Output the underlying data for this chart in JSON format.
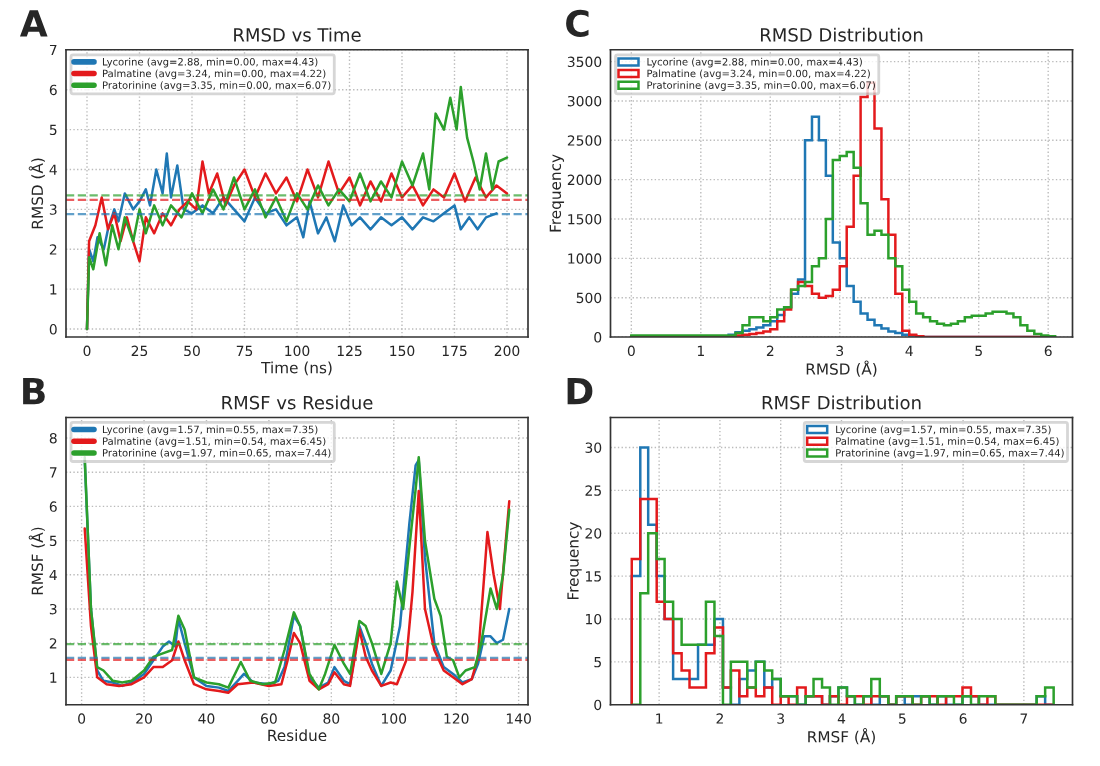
{
  "chart_data": [
    {
      "type": "line",
      "title": "RMSD vs Time",
      "xlabel": "Time (ns)",
      "ylabel": "RMSD (Å)",
      "annotations": [
        "A"
      ],
      "xlim": [
        -10,
        210
      ],
      "xticks": [
        0,
        25,
        50,
        75,
        100,
        125,
        150,
        175,
        200
      ],
      "ylim": [
        -0.2,
        7
      ],
      "yticks": [
        0,
        1,
        2,
        3,
        4,
        5,
        6,
        7
      ],
      "grid": true,
      "legend": "top left",
      "ref_lines": [
        {
          "axis": "y",
          "value": 2.88,
          "color": "#1f77b4",
          "line_style": "dashed"
        },
        {
          "axis": "y",
          "value": 3.24,
          "color": "#e31a1c",
          "line_style": "dashed"
        },
        {
          "axis": "y",
          "value": 3.35,
          "color": "#2ca02c",
          "line_style": "dashed"
        }
      ],
      "series": [
        {
          "name": "Lycorine (avg=2.88, min=0.00, max=4.43)",
          "color": "#1f77b4",
          "x": [
            0,
            1,
            3,
            5,
            8,
            10,
            13,
            15,
            18,
            22,
            25,
            28,
            30,
            33,
            36,
            38,
            40,
            43,
            46,
            50,
            55,
            60,
            65,
            70,
            75,
            80,
            85,
            90,
            95,
            100,
            103,
            106,
            110,
            114,
            118,
            122,
            126,
            130,
            135,
            140,
            145,
            150,
            155,
            160,
            165,
            170,
            175,
            178,
            182,
            186,
            190,
            195
          ],
          "values": [
            0,
            2.0,
            1.7,
            2.3,
            2.0,
            2.5,
            3.0,
            2.7,
            3.4,
            3.0,
            3.2,
            3.5,
            3.1,
            4.0,
            3.4,
            4.4,
            3.3,
            4.1,
            3.0,
            2.9,
            3.1,
            2.9,
            3.3,
            3.0,
            2.7,
            3.3,
            2.9,
            3.0,
            2.6,
            2.8,
            2.3,
            3.2,
            2.4,
            2.8,
            2.2,
            3.1,
            2.6,
            2.8,
            2.5,
            2.8,
            2.6,
            2.8,
            2.5,
            2.8,
            2.7,
            2.9,
            3.1,
            2.5,
            2.8,
            2.5,
            2.8,
            2.9
          ]
        },
        {
          "name": "Palmatine (avg=3.24, min=0.00, max=4.22)",
          "color": "#e31a1c",
          "x": [
            0,
            1,
            4,
            7,
            10,
            13,
            16,
            19,
            22,
            25,
            28,
            32,
            36,
            40,
            44,
            48,
            52,
            55,
            58,
            62,
            66,
            70,
            75,
            80,
            85,
            90,
            95,
            100,
            105,
            110,
            115,
            120,
            125,
            130,
            135,
            140,
            145,
            150,
            155,
            160,
            165,
            170,
            175,
            180,
            185,
            190,
            195,
            200
          ],
          "values": [
            0,
            2.2,
            2.6,
            3.3,
            2.5,
            2.9,
            2.2,
            2.8,
            2.2,
            1.7,
            2.8,
            2.4,
            2.9,
            2.6,
            3.0,
            3.2,
            3.0,
            4.2,
            3.4,
            3.9,
            3.1,
            3.6,
            4.0,
            3.3,
            3.9,
            3.4,
            3.8,
            3.2,
            4.0,
            3.3,
            4.2,
            3.4,
            3.8,
            3.1,
            3.7,
            3.2,
            3.9,
            3.3,
            3.6,
            3.1,
            3.5,
            3.3,
            3.9,
            3.2,
            3.8,
            3.3,
            3.6,
            3.4
          ]
        },
        {
          "name": "Pratorinine (avg=3.35, min=0.00, max=6.07)",
          "color": "#2ca02c",
          "x": [
            0,
            1,
            3,
            6,
            9,
            12,
            15,
            18,
            22,
            25,
            28,
            32,
            36,
            40,
            45,
            50,
            55,
            60,
            65,
            70,
            75,
            80,
            85,
            90,
            95,
            100,
            105,
            110,
            115,
            120,
            125,
            130,
            135,
            140,
            145,
            150,
            155,
            160,
            163,
            166,
            170,
            173,
            176,
            178,
            181,
            184,
            187,
            190,
            193,
            196,
            200
          ],
          "values": [
            0,
            1.8,
            1.5,
            2.4,
            1.6,
            2.6,
            2.0,
            2.8,
            2.2,
            3.0,
            2.4,
            3.1,
            2.6,
            3.1,
            2.8,
            3.4,
            2.9,
            3.5,
            3.0,
            3.8,
            3.0,
            3.5,
            2.8,
            3.3,
            2.7,
            3.4,
            3.0,
            3.6,
            3.1,
            3.5,
            3.2,
            3.9,
            3.2,
            3.7,
            3.3,
            4.2,
            3.6,
            4.4,
            3.5,
            5.4,
            5.0,
            5.8,
            5.0,
            6.07,
            4.8,
            4.2,
            3.5,
            4.4,
            3.5,
            4.2,
            4.3
          ]
        }
      ]
    },
    {
      "type": "histogram",
      "title": "RMSD Distribution",
      "xlabel": "RMSD (Å)",
      "ylabel": "Frequency",
      "annotations": [
        "C"
      ],
      "xlim": [
        -0.3,
        6.35
      ],
      "xticks": [
        0,
        1,
        2,
        3,
        4,
        5,
        6
      ],
      "ylim": [
        0,
        3650
      ],
      "yticks": [
        0,
        500,
        1000,
        1500,
        2000,
        2500,
        3000,
        3500
      ],
      "grid": true,
      "legend": "top left",
      "bins": [
        0,
        1.4,
        1.5,
        1.6,
        1.7,
        1.8,
        1.9,
        2.0,
        2.1,
        2.2,
        2.3,
        2.4,
        2.5,
        2.6,
        2.7,
        2.8,
        2.9,
        3.0,
        3.1,
        3.2,
        3.3,
        3.4,
        3.5,
        3.6,
        3.7,
        3.8,
        3.9,
        4.0,
        4.1,
        4.2,
        4.3,
        4.4,
        4.5,
        4.6,
        4.7,
        4.8,
        4.9,
        5.0,
        5.1,
        5.2,
        5.3,
        5.4,
        5.5,
        5.6,
        5.7,
        5.8,
        5.9,
        6.0,
        6.1
      ],
      "series": [
        {
          "name": "Lycorine (avg=2.88, min=0.00, max=4.43)",
          "color": "#1f77b4",
          "values": [
            10,
            30,
            60,
            80,
            100,
            120,
            150,
            200,
            280,
            380,
            550,
            730,
            2500,
            2800,
            2500,
            2050,
            1200,
            1000,
            650,
            450,
            300,
            220,
            150,
            110,
            70,
            50,
            30,
            20,
            10,
            0,
            0,
            0,
            0,
            0,
            0,
            0,
            0,
            0,
            0,
            0,
            0,
            0,
            0,
            0,
            0,
            0,
            0,
            0
          ]
        },
        {
          "name": "Palmatine (avg=3.24, min=0.00, max=4.22)",
          "color": "#e31a1c",
          "values": [
            10,
            10,
            20,
            30,
            40,
            50,
            70,
            100,
            200,
            350,
            600,
            700,
            650,
            550,
            500,
            520,
            600,
            900,
            1400,
            2050,
            3050,
            3230,
            2650,
            1750,
            1300,
            550,
            80,
            30,
            10,
            0,
            0,
            0,
            0,
            0,
            0,
            0,
            0,
            0,
            0,
            0,
            0,
            0,
            0,
            0,
            0,
            0,
            0,
            0
          ]
        },
        {
          "name": "Pratorinine (avg=3.35, min=0.00, max=6.07)",
          "color": "#2ca02c",
          "values": [
            20,
            20,
            50,
            150,
            250,
            250,
            200,
            250,
            350,
            380,
            600,
            650,
            700,
            900,
            1000,
            1500,
            2250,
            2300,
            2350,
            2150,
            1700,
            1300,
            1350,
            1300,
            1000,
            900,
            600,
            450,
            300,
            250,
            200,
            170,
            150,
            170,
            200,
            250,
            270,
            270,
            300,
            320,
            320,
            300,
            250,
            150,
            80,
            40,
            20,
            10
          ]
        }
      ]
    },
    {
      "type": "line",
      "title": "RMSF vs Residue",
      "xlabel": "Residue",
      "ylabel": "RMSF (Å)",
      "annotations": [
        "B"
      ],
      "xlim": [
        -5,
        143
      ],
      "xticks": [
        0,
        20,
        40,
        60,
        80,
        100,
        120,
        140
      ],
      "ylim": [
        0.2,
        8.6
      ],
      "yticks": [
        1,
        2,
        3,
        4,
        5,
        6,
        7,
        8
      ],
      "grid": true,
      "legend": "top left",
      "ref_lines": [
        {
          "axis": "y",
          "value": 1.57,
          "color": "#1f77b4",
          "line_style": "dashed"
        },
        {
          "axis": "y",
          "value": 1.51,
          "color": "#e31a1c",
          "line_style": "dashed"
        },
        {
          "axis": "y",
          "value": 1.97,
          "color": "#2ca02c",
          "line_style": "dashed"
        }
      ],
      "series": [
        {
          "name": "Lycorine (avg=1.57, min=0.55, max=7.35)",
          "color": "#1f77b4",
          "x": [
            1,
            3,
            5,
            7,
            10,
            13,
            16,
            20,
            23,
            26,
            28,
            30,
            31,
            33,
            36,
            40,
            44,
            47,
            50,
            52,
            55,
            60,
            63,
            65,
            68,
            70,
            73,
            76,
            79,
            81,
            84,
            86,
            89,
            91,
            93,
            96,
            99,
            102,
            105,
            107,
            108,
            110,
            113,
            116,
            119,
            122,
            125,
            127,
            129,
            131,
            133,
            135,
            137
          ],
          "values": [
            7.35,
            3.0,
            1.2,
            0.9,
            0.85,
            0.75,
            0.85,
            1.1,
            1.5,
            1.9,
            2.05,
            1.9,
            2.7,
            2.0,
            1.0,
            0.75,
            0.7,
            0.6,
            0.9,
            1.1,
            0.85,
            0.8,
            0.9,
            1.3,
            2.8,
            2.5,
            1.0,
            0.7,
            0.85,
            1.3,
            0.9,
            0.8,
            2.5,
            2.0,
            1.4,
            0.75,
            1.2,
            2.5,
            5.5,
            7.2,
            7.35,
            4.5,
            2.0,
            1.3,
            1.1,
            0.85,
            0.95,
            1.4,
            2.2,
            2.2,
            2.0,
            2.1,
            3.0
          ]
        },
        {
          "name": "Palmatine (avg=1.51, min=0.54, max=6.45)",
          "color": "#e31a1c",
          "x": [
            1,
            3,
            5,
            8,
            12,
            16,
            20,
            23,
            26,
            29,
            31,
            33,
            36,
            40,
            44,
            47,
            50,
            55,
            60,
            64,
            66,
            68,
            70,
            73,
            76,
            79,
            81,
            84,
            86,
            89,
            91,
            93,
            96,
            99,
            101,
            104,
            106,
            108,
            110,
            113,
            116,
            119,
            122,
            125,
            127,
            129,
            130,
            132,
            134,
            137
          ],
          "values": [
            5.35,
            2.5,
            1.0,
            0.8,
            0.75,
            0.8,
            1.0,
            1.3,
            1.3,
            1.5,
            2.05,
            1.5,
            0.8,
            0.65,
            0.6,
            0.55,
            0.8,
            0.85,
            0.75,
            0.8,
            1.5,
            2.3,
            2.0,
            0.9,
            0.65,
            0.8,
            1.15,
            0.8,
            0.75,
            2.4,
            1.6,
            1.2,
            0.75,
            0.85,
            0.8,
            1.5,
            3.5,
            6.45,
            3.0,
            1.8,
            1.2,
            1.0,
            0.8,
            0.95,
            1.6,
            4.0,
            5.25,
            4.0,
            3.0,
            6.15
          ]
        },
        {
          "name": "Pratorinine (avg=1.97, min=0.65, max=7.44)",
          "color": "#2ca02c",
          "x": [
            1,
            3,
            5,
            7,
            10,
            13,
            16,
            20,
            23,
            26,
            29,
            31,
            33,
            36,
            40,
            44,
            47,
            51,
            54,
            58,
            62,
            65,
            68,
            70,
            73,
            76,
            78,
            81,
            84,
            86,
            89,
            91,
            93,
            96,
            99,
            101,
            103,
            105,
            107,
            108,
            110,
            113,
            115,
            117,
            119,
            121,
            123,
            126,
            128,
            131,
            133,
            135,
            137
          ],
          "values": [
            7.44,
            3.0,
            1.3,
            1.2,
            0.9,
            0.85,
            0.9,
            1.2,
            1.6,
            1.7,
            1.8,
            2.8,
            2.4,
            1.0,
            0.85,
            0.8,
            0.7,
            1.45,
            0.9,
            0.8,
            0.85,
            1.8,
            2.9,
            2.5,
            1.1,
            0.65,
            1.1,
            1.95,
            1.4,
            1.1,
            2.65,
            2.5,
            2.0,
            1.1,
            2.0,
            3.8,
            3.0,
            4.8,
            6.5,
            7.44,
            5.0,
            3.3,
            2.8,
            1.6,
            1.5,
            1.0,
            1.2,
            1.3,
            2.0,
            3.6,
            3.0,
            4.0,
            5.9
          ]
        }
      ]
    },
    {
      "type": "histogram",
      "title": "RMSF Distribution",
      "xlabel": "RMSF (Å)",
      "ylabel": "Frequency",
      "annotations": [
        "D"
      ],
      "xlim": [
        0.2,
        7.8
      ],
      "xticks": [
        1,
        2,
        3,
        4,
        5,
        6,
        7
      ],
      "ylim": [
        0,
        33.5
      ],
      "yticks": [
        0,
        5,
        10,
        15,
        20,
        25,
        30
      ],
      "grid": true,
      "legend": "top right",
      "bins": [
        0.55,
        0.69,
        0.82,
        0.96,
        1.09,
        1.23,
        1.37,
        1.5,
        1.64,
        1.77,
        1.91,
        2.05,
        2.18,
        2.32,
        2.45,
        2.59,
        2.73,
        2.86,
        3.0,
        3.13,
        3.27,
        3.41,
        3.54,
        3.68,
        3.81,
        3.95,
        4.09,
        4.22,
        4.36,
        4.49,
        4.63,
        4.77,
        4.9,
        5.04,
        5.17,
        5.31,
        5.45,
        5.58,
        5.72,
        5.85,
        5.99,
        6.13,
        6.26,
        6.4,
        6.53,
        6.67,
        6.81,
        6.94,
        7.08,
        7.21,
        7.35,
        7.49
      ],
      "series": [
        {
          "name": "Lycorine (avg=1.57, min=0.55, max=7.35)",
          "color": "#1f77b4",
          "values": [
            15,
            30,
            21,
            15,
            10,
            3,
            3,
            3,
            7,
            7,
            10,
            2,
            0,
            3,
            4,
            5,
            2,
            3,
            1,
            1,
            0,
            1,
            1,
            0,
            1,
            2,
            1,
            0,
            1,
            0,
            1,
            0,
            1,
            0,
            1,
            1,
            0,
            1,
            0,
            0,
            1,
            1,
            0,
            0,
            0,
            0,
            0,
            0,
            0,
            1,
            0
          ]
        },
        {
          "name": "Palmatine (avg=1.51, min=0.54, max=6.45)",
          "color": "#e31a1c",
          "values": [
            17,
            24,
            24,
            12,
            10,
            6,
            4,
            2,
            2,
            6,
            9,
            2,
            4,
            1,
            2,
            1,
            2,
            0,
            1,
            0,
            2,
            1,
            1,
            0,
            1,
            0,
            1,
            1,
            0,
            1,
            1,
            0,
            1,
            1,
            0,
            1,
            1,
            0,
            1,
            1,
            2,
            1,
            0,
            1,
            0,
            0,
            0,
            0,
            0,
            0,
            0
          ]
        },
        {
          "name": "Pratorinine (avg=1.97, min=0.65, max=7.44)",
          "color": "#2ca02c",
          "values": [
            0,
            13,
            20,
            17,
            12,
            10,
            7,
            7,
            7,
            12,
            8,
            0,
            5,
            5,
            2,
            5,
            4,
            3,
            1,
            1,
            0,
            1,
            3,
            2,
            0,
            2,
            1,
            0,
            1,
            3,
            1,
            0,
            1,
            1,
            0,
            1,
            0,
            1,
            1,
            0,
            1,
            0,
            1,
            1,
            0,
            0,
            0,
            0,
            0,
            1,
            2
          ]
        }
      ]
    }
  ]
}
